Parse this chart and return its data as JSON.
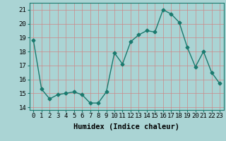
{
  "x": [
    0,
    1,
    2,
    3,
    4,
    5,
    6,
    7,
    8,
    9,
    10,
    11,
    12,
    13,
    14,
    15,
    16,
    17,
    18,
    19,
    20,
    21,
    22,
    23
  ],
  "y": [
    18.8,
    15.3,
    14.6,
    14.9,
    15.0,
    15.1,
    14.9,
    14.3,
    14.3,
    15.1,
    17.9,
    17.1,
    18.7,
    19.2,
    19.5,
    19.4,
    21.0,
    20.7,
    20.1,
    18.3,
    16.9,
    18.0,
    16.5,
    15.7
  ],
  "line_color": "#1a7a6e",
  "bg_color": "#aad4d4",
  "grid_color": "#cc8888",
  "xlabel": "Humidex (Indice chaleur)",
  "ylim": [
    13.8,
    21.5
  ],
  "xlim": [
    -0.5,
    23.5
  ],
  "yticks": [
    14,
    15,
    16,
    17,
    18,
    19,
    20,
    21
  ],
  "xticks": [
    0,
    1,
    2,
    3,
    4,
    5,
    6,
    7,
    8,
    9,
    10,
    11,
    12,
    13,
    14,
    15,
    16,
    17,
    18,
    19,
    20,
    21,
    22,
    23
  ],
  "marker": "D",
  "markersize": 2.5,
  "linewidth": 1.0,
  "xlabel_fontsize": 7.5,
  "tick_fontsize": 6.5
}
